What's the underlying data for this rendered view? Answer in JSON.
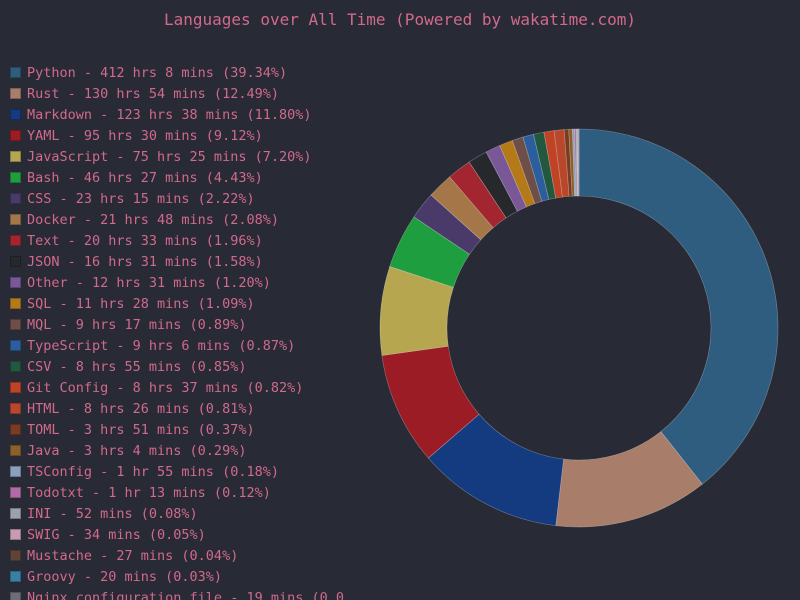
{
  "title": "Languages over All Time (Powered by wakatime.com)",
  "chart_data": {
    "type": "pie",
    "style": "donut",
    "title": "Languages over All Time (Powered by wakatime.com)",
    "legend_placement": "left",
    "slices": [
      {
        "label": "Python - 412 hrs 8 mins (39.34%)",
        "value": 39.34,
        "color": "#2f5d80"
      },
      {
        "label": "Rust - 130 hrs 54 mins (12.49%)",
        "value": 12.49,
        "color": "#a87d69"
      },
      {
        "label": "Markdown - 123 hrs 38 mins (11.80%)",
        "value": 11.8,
        "color": "#143a80"
      },
      {
        "label": "YAML - 95 hrs 30 mins (9.12%)",
        "value": 9.12,
        "color": "#9b1c25"
      },
      {
        "label": "JavaScript - 75 hrs 25 mins (7.20%)",
        "value": 7.2,
        "color": "#b7a650"
      },
      {
        "label": "Bash - 46 hrs 27 mins (4.43%)",
        "value": 4.43,
        "color": "#1e9e3f"
      },
      {
        "label": "CSS - 23 hrs 15 mins (2.22%)",
        "value": 2.22,
        "color": "#4a3a6a"
      },
      {
        "label": "Docker - 21 hrs 48 mins (2.08%)",
        "value": 2.08,
        "color": "#a57648"
      },
      {
        "label": "Text - 20 hrs 33 mins (1.96%)",
        "value": 1.96,
        "color": "#a32530"
      },
      {
        "label": "JSON - 16 hrs 31 mins (1.58%)",
        "value": 1.58,
        "color": "#27282c"
      },
      {
        "label": "Other - 12 hrs 31 mins (1.20%)",
        "value": 1.2,
        "color": "#7a5898"
      },
      {
        "label": "SQL - 11 hrs 28 mins (1.09%)",
        "value": 1.09,
        "color": "#b37a17"
      },
      {
        "label": "MQL - 9 hrs 17 mins (0.89%)",
        "value": 0.89,
        "color": "#6e4e46"
      },
      {
        "label": "TypeScript - 9 hrs 6 mins (0.87%)",
        "value": 0.87,
        "color": "#2c5e9e"
      },
      {
        "label": "CSV - 8 hrs 55 mins (0.85%)",
        "value": 0.85,
        "color": "#22583f"
      },
      {
        "label": "Git Config - 8 hrs 37 mins (0.82%)",
        "value": 0.82,
        "color": "#c14326"
      },
      {
        "label": "HTML - 8 hrs 26 mins (0.81%)",
        "value": 0.81,
        "color": "#b9472c"
      },
      {
        "label": "TOML - 3 hrs 51 mins (0.37%)",
        "value": 0.37,
        "color": "#7b3a22"
      },
      {
        "label": "Java - 3 hrs 4 mins (0.29%)",
        "value": 0.29,
        "color": "#8c6128"
      },
      {
        "label": "TSConfig - 1 hr 55 mins (0.18%)",
        "value": 0.18,
        "color": "#8aa0bd"
      },
      {
        "label": "Todotxt - 1 hr 13 mins (0.12%)",
        "value": 0.12,
        "color": "#b06aa4"
      },
      {
        "label": "INI - 52 mins (0.08%)",
        "value": 0.08,
        "color": "#9aa2ad"
      },
      {
        "label": "SWIG - 34 mins (0.05%)",
        "value": 0.05,
        "color": "#c79cb0"
      },
      {
        "label": "Mustache - 27 mins (0.04%)",
        "value": 0.04,
        "color": "#5e4438"
      },
      {
        "label": "Groovy - 20 mins (0.03%)",
        "value": 0.03,
        "color": "#3a7fa8"
      },
      {
        "label": "Nginx configuration file - 19 mins (0.0",
        "value": 0.03,
        "color": "#6b6e76"
      }
    ]
  }
}
